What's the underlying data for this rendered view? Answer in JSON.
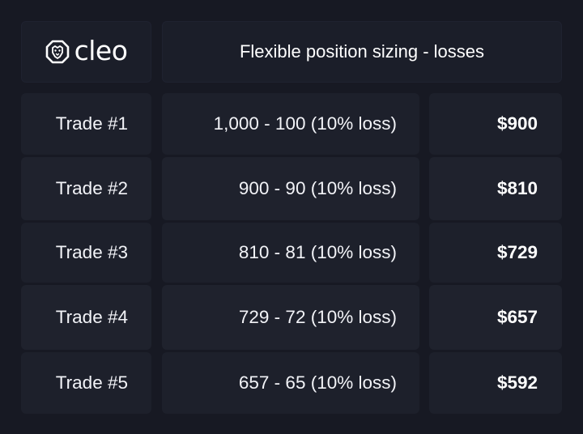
{
  "logo": {
    "text": "cleo",
    "icon": "lion-head-icon"
  },
  "title": "Flexible position sizing - losses",
  "rows": [
    {
      "label": "Trade #1",
      "calc": "1,000 - 100 (10% loss)",
      "result": "$900"
    },
    {
      "label": "Trade #2",
      "calc": "900 - 90 (10% loss)",
      "result": "$810"
    },
    {
      "label": "Trade #3",
      "calc": "810 - 81 (10% loss)",
      "result": "$729"
    },
    {
      "label": "Trade #4",
      "calc": "729 - 72 (10% loss)",
      "result": "$657"
    },
    {
      "label": "Trade #5",
      "calc": "657 - 65 (10% loss)",
      "result": "$592"
    }
  ],
  "colors": {
    "background": "#171923",
    "card": "#1d202b",
    "text": "#ffffff"
  }
}
